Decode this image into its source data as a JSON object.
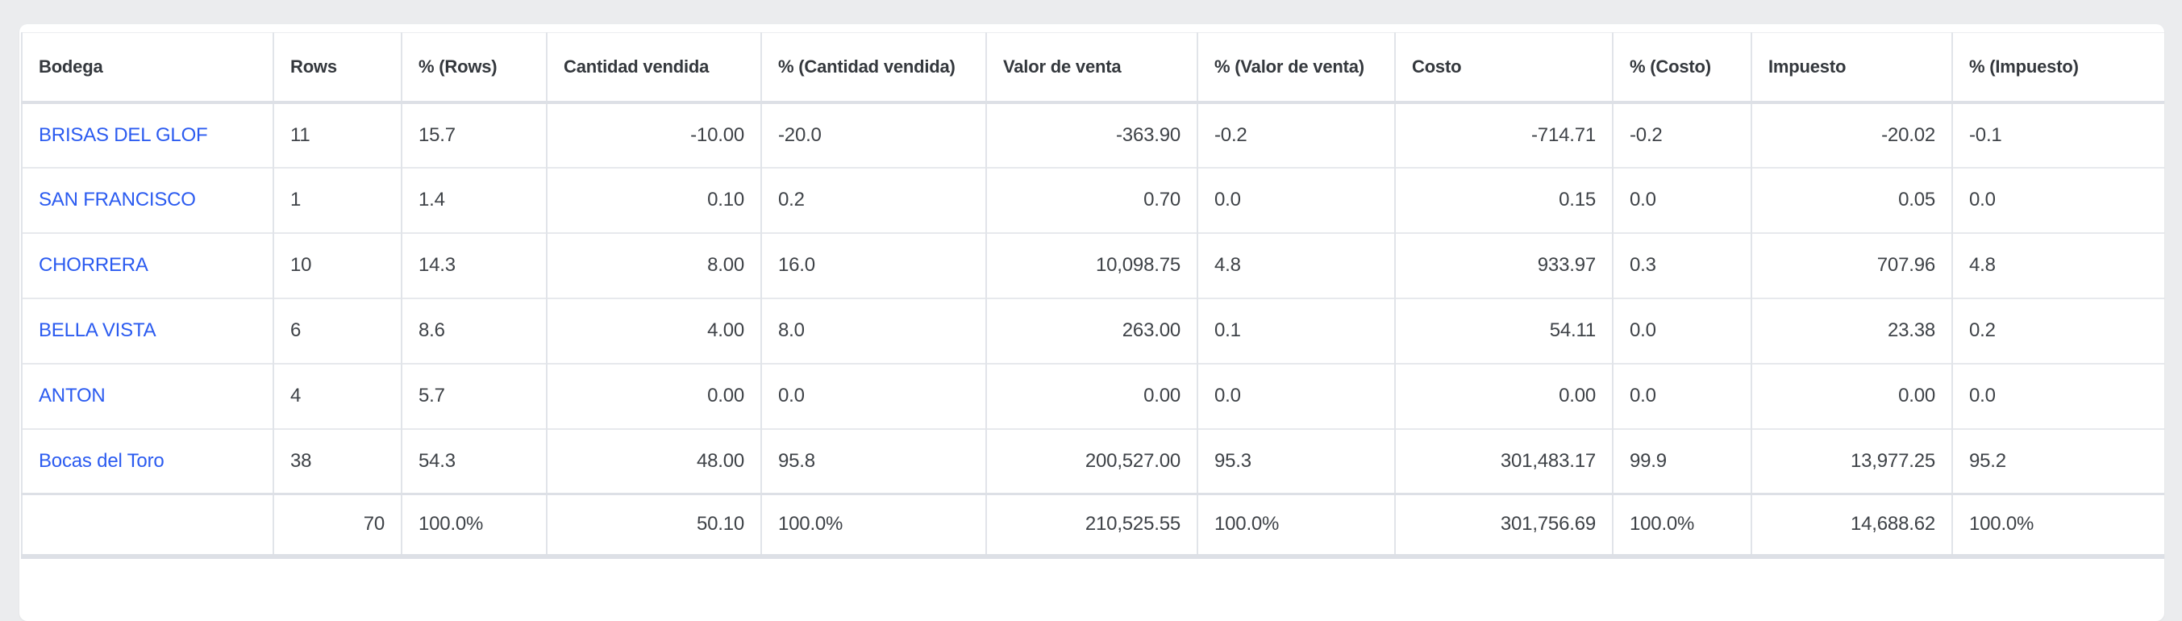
{
  "page": {
    "background": "#ebecee"
  },
  "colors": {
    "link": "#2b5bf0",
    "total": "#2f9e4f",
    "header_text": "#34383d",
    "body_text": "#3e4247"
  },
  "table": {
    "columns": [
      {
        "label": "Bodega"
      },
      {
        "label": "Rows"
      },
      {
        "label": "% (Rows)"
      },
      {
        "label": "Cantidad vendida"
      },
      {
        "label": "% (Cantidad vendida)"
      },
      {
        "label": "Valor de venta"
      },
      {
        "label": "% (Valor de venta)"
      },
      {
        "label": "Costo"
      },
      {
        "label": "% (Costo)"
      },
      {
        "label": "Impuesto"
      },
      {
        "label": "% (Impuesto)"
      }
    ],
    "rows": [
      {
        "type": "data",
        "cells": [
          "BRISAS DEL GLOF",
          "11",
          "15.7",
          "-10.00",
          "-20.0",
          "-363.90",
          "-0.2",
          "-714.71",
          "-0.2",
          "-20.02",
          "-0.1"
        ]
      },
      {
        "type": "data",
        "cells": [
          "SAN FRANCISCO",
          "1",
          "1.4",
          "0.10",
          "0.2",
          "0.70",
          "0.0",
          "0.15",
          "0.0",
          "0.05",
          "0.0"
        ]
      },
      {
        "type": "data",
        "cells": [
          "CHORRERA",
          "10",
          "14.3",
          "8.00",
          "16.0",
          "10,098.75",
          "4.8",
          "933.97",
          "0.3",
          "707.96",
          "4.8"
        ]
      },
      {
        "type": "data",
        "cells": [
          "BELLA VISTA",
          "6",
          "8.6",
          "4.00",
          "8.0",
          "263.00",
          "0.1",
          "54.11",
          "0.0",
          "23.38",
          "0.2"
        ]
      },
      {
        "type": "data",
        "cells": [
          "ANTON",
          "4",
          "5.7",
          "0.00",
          "0.0",
          "0.00",
          "0.0",
          "0.00",
          "0.0",
          "0.00",
          "0.0"
        ]
      },
      {
        "type": "data",
        "cells": [
          "Bocas del Toro",
          "38",
          "54.3",
          "48.00",
          "95.8",
          "200,527.00",
          "95.3",
          "301,483.17",
          "99.9",
          "13,977.25",
          "95.2"
        ]
      },
      {
        "type": "total",
        "cells": [
          "",
          "70",
          "100.0%",
          "50.10",
          "100.0%",
          "210,525.55",
          "100.0%",
          "301,756.69",
          "100.0%",
          "14,688.62",
          "100.0%"
        ]
      }
    ]
  }
}
